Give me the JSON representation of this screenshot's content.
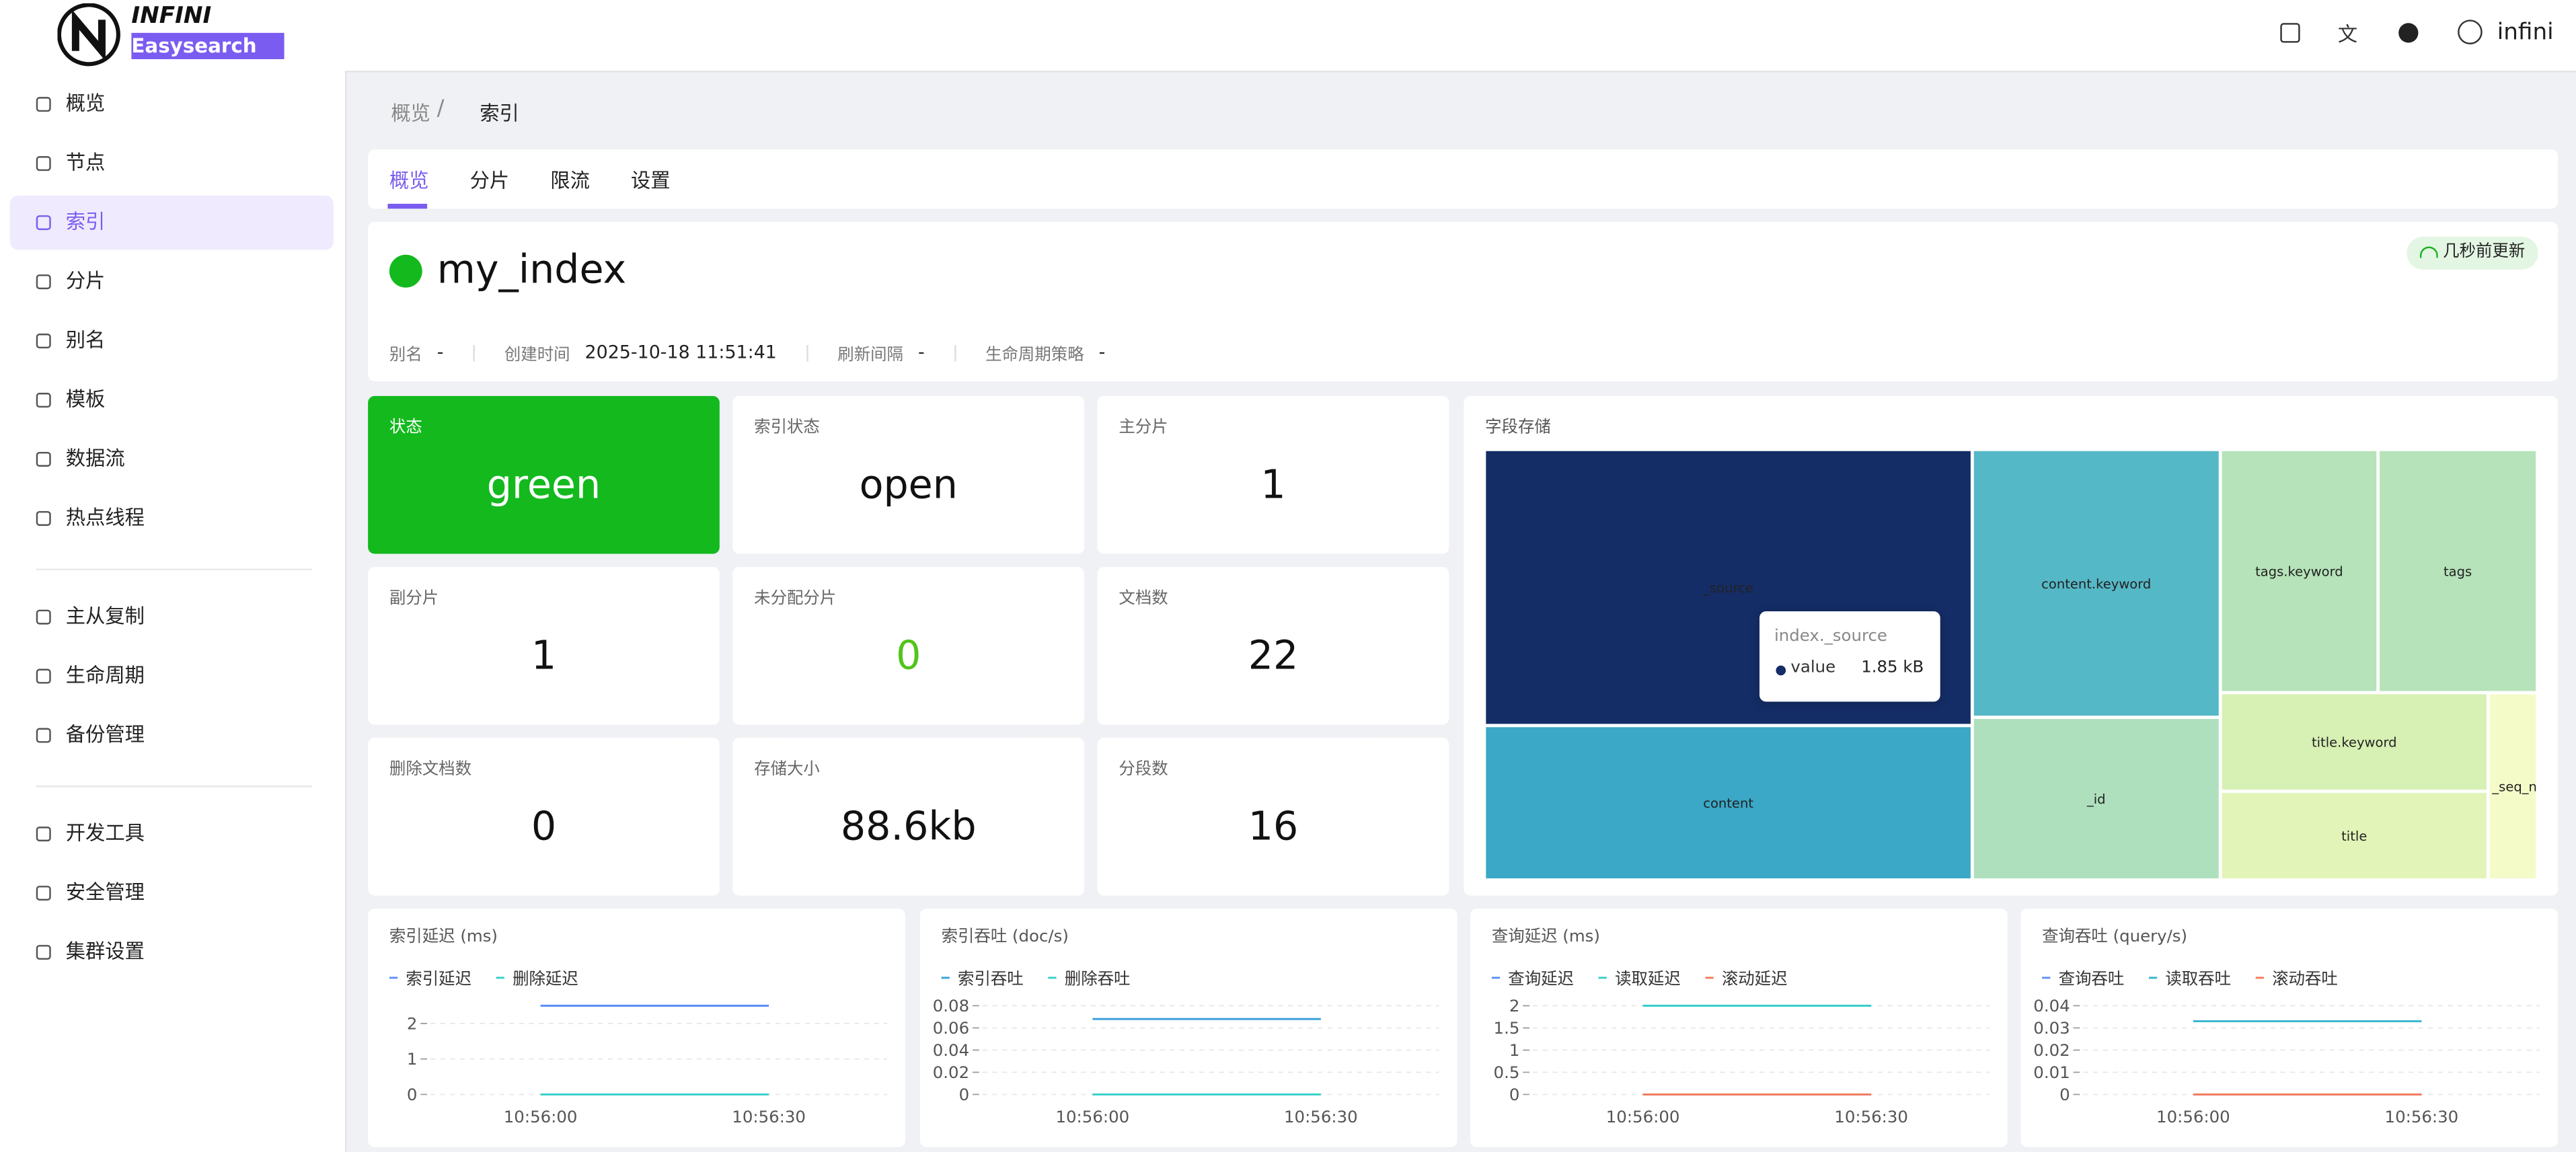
{
  "header": {
    "logo_top": "INFINI",
    "logo_bottom": "Easysearch",
    "user": "infini"
  },
  "sidebar": {
    "groups": [
      [
        "概览",
        "节点",
        "索引",
        "分片",
        "别名",
        "模板",
        "数据流",
        "热点线程"
      ],
      [
        "主从复制",
        "生命周期",
        "备份管理"
      ],
      [
        "开发工具",
        "安全管理",
        "集群设置"
      ]
    ],
    "active": "索引"
  },
  "breadcrumb": [
    "概览",
    "索引"
  ],
  "tabs": {
    "items": [
      "概览",
      "分片",
      "限流",
      "设置"
    ],
    "active": "概览"
  },
  "index": {
    "name": "my_index",
    "badge": "几秒前更新",
    "meta": [
      {
        "label": "别名",
        "value": "-"
      },
      {
        "label": "创建时间",
        "value": "2025-10-18 11:51:41"
      },
      {
        "label": "刷新间隔",
        "value": "-"
      },
      {
        "label": "生命周期策略",
        "value": "-"
      }
    ]
  },
  "stats": [
    {
      "label": "状态",
      "value": "green",
      "background": "#13b91d"
    },
    {
      "label": "索引状态",
      "value": "open"
    },
    {
      "label": "主分片",
      "value": 1
    },
    {
      "label": "副分片",
      "value": 1
    },
    {
      "label": "未分配分片",
      "value": 0,
      "color": "#52c41a"
    },
    {
      "label": "文档数",
      "value": 22
    },
    {
      "label": "删除文档数",
      "value": 0
    },
    {
      "label": "存储大小",
      "value": "88.6kb"
    },
    {
      "label": "分段数",
      "value": 16
    }
  ],
  "treemap": {
    "title": "字段存储",
    "cells": [
      "_source",
      "content.keyword",
      "content",
      "_id",
      "tags.keyword",
      "tags",
      "title.keyword",
      "title",
      "_seq_n"
    ],
    "tooltip": {
      "title": "index._source",
      "series": "value",
      "value": "1.85 kB"
    }
  },
  "charts": [
    {
      "type": "line",
      "title": "索引延迟 (ms)",
      "categories": [
        "10:56:00",
        "10:56:30"
      ],
      "ylim": [
        0,
        2.5
      ],
      "yticks": [
        0,
        1,
        2
      ],
      "series": [
        {
          "name": "索引延迟",
          "color": "#5b8ff9",
          "values": [
            2.5,
            2.5
          ]
        },
        {
          "name": "删除延迟",
          "color": "#36cfc9",
          "values": [
            0,
            0
          ]
        }
      ]
    },
    {
      "type": "line",
      "title": "索引吞吐 (doc/s)",
      "categories": [
        "10:56:00",
        "10:56:30"
      ],
      "ylim": [
        0,
        0.08
      ],
      "yticks": [
        0,
        0.02,
        0.04,
        0.06,
        0.08
      ],
      "series": [
        {
          "name": "索引吞吐",
          "color": "#3ba0d8",
          "values": [
            0.068,
            0.068
          ]
        },
        {
          "name": "删除吞吐",
          "color": "#36cfc9",
          "values": [
            0,
            0
          ]
        }
      ]
    },
    {
      "type": "line",
      "title": "查询延迟 (ms)",
      "categories": [
        "10:56:00",
        "10:56:30"
      ],
      "ylim": [
        0,
        2
      ],
      "yticks": [
        0,
        0.5,
        1,
        1.5,
        2
      ],
      "series": [
        {
          "name": "查询延迟",
          "color": "#5b8ff9",
          "values": [
            0,
            0
          ]
        },
        {
          "name": "读取延迟",
          "color": "#36cfc9",
          "values": [
            2,
            2
          ]
        },
        {
          "name": "滚动延迟",
          "color": "#f6795b",
          "values": [
            0,
            0
          ]
        }
      ]
    },
    {
      "type": "line",
      "title": "查询吞吐 (query/s)",
      "categories": [
        "10:56:00",
        "10:56:30"
      ],
      "ylim": [
        0,
        0.04
      ],
      "yticks": [
        0,
        0.01,
        0.02,
        0.03,
        0.04
      ],
      "series": [
        {
          "name": "查询吞吐",
          "color": "#5b8ff9",
          "values": [
            0,
            0
          ]
        },
        {
          "name": "读取吞吐",
          "color": "#36b5cf",
          "values": [
            0.033,
            0.033
          ]
        },
        {
          "name": "滚动吞吐",
          "color": "#f6795b",
          "values": [
            0,
            0
          ]
        }
      ]
    }
  ]
}
